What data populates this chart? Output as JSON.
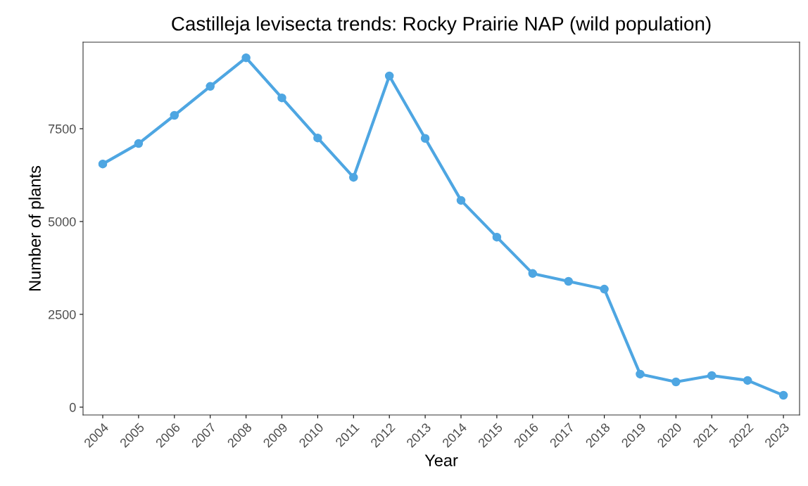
{
  "chart_data": {
    "type": "line",
    "title": "Castilleja levisecta trends: Rocky Prairie NAP (wild population)",
    "xlabel": "Year",
    "ylabel": "Number of plants",
    "categories": [
      "2004",
      "2005",
      "2006",
      "2007",
      "2008",
      "2009",
      "2010",
      "2011",
      "2012",
      "2013",
      "2014",
      "2015",
      "2016",
      "2017",
      "2018",
      "2019",
      "2020",
      "2021",
      "2022",
      "2023"
    ],
    "series": [
      {
        "color": "#4ea6e2",
        "values": [
          6550,
          7100,
          7860,
          8640,
          9410,
          8330,
          7250,
          6190,
          8920,
          7240,
          5570,
          4580,
          3600,
          3390,
          3180,
          890,
          680,
          850,
          720,
          320
        ]
      }
    ],
    "ylim": [
      -210,
      9830
    ],
    "yticks": [
      0,
      2500,
      5000,
      7500
    ],
    "grid": false,
    "marker": "circle",
    "line_style": "solid"
  }
}
